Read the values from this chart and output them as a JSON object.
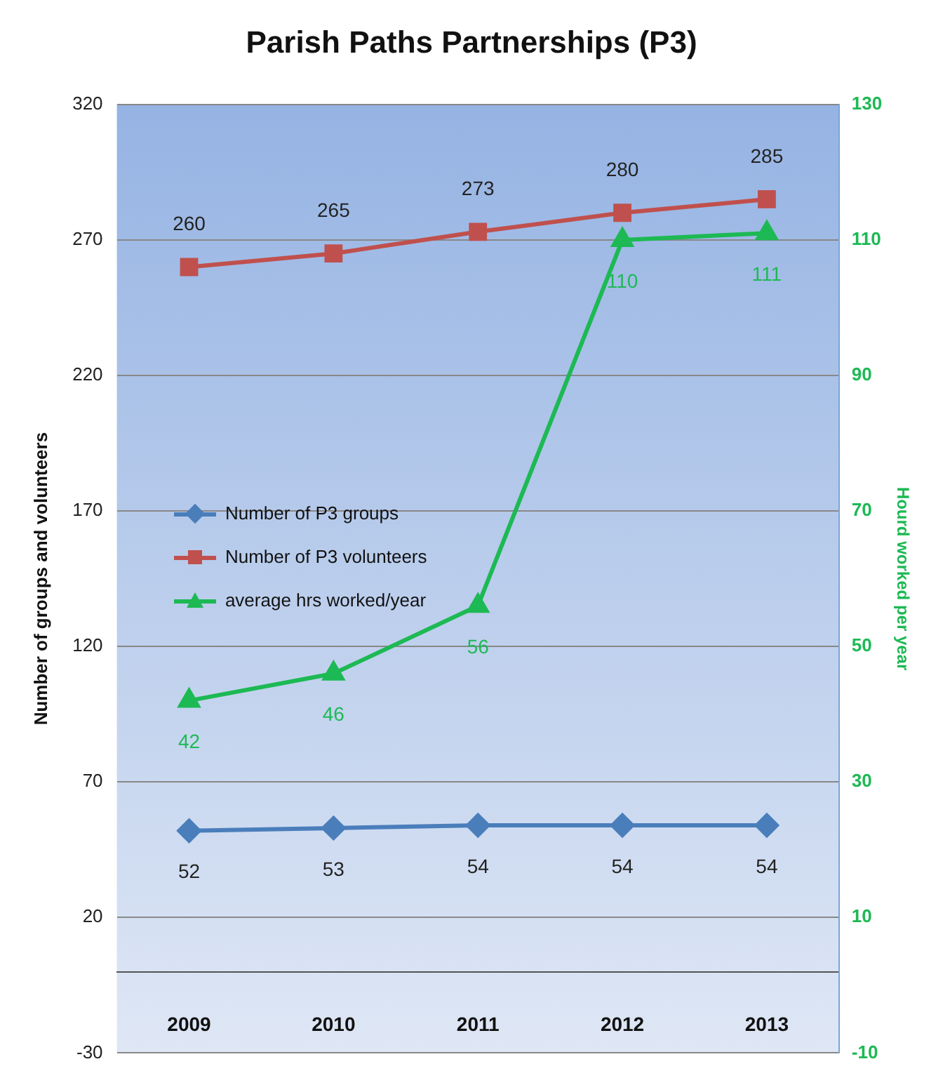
{
  "chart_data": {
    "type": "line",
    "title": "Parish Paths Partnerships (P3)",
    "ylabel": "Number of groups and volunteers",
    "y2label": "Hourd worked per year",
    "categories": [
      "2009",
      "2010",
      "2011",
      "2012",
      "2013"
    ],
    "series": [
      {
        "name": "Number of P3 groups",
        "color": "#4a7ebb",
        "marker": "diamond",
        "values": [
          52,
          53,
          54,
          54,
          54
        ]
      },
      {
        "name": "Number of P3 volunteers",
        "color": "#c0504d",
        "marker": "square",
        "values": [
          260,
          265,
          273,
          280,
          285
        ]
      },
      {
        "name": "average hrs worked/year",
        "color": "#1db954",
        "marker": "triangle",
        "axis": "y2",
        "values": [
          42,
          46,
          56,
          110,
          111
        ]
      }
    ],
    "ylim": [
      -30,
      320
    ],
    "yticks": [
      -30,
      20,
      70,
      120,
      170,
      220,
      270,
      320
    ],
    "y2lim": [
      -10,
      130
    ],
    "y2ticks": [
      -10,
      10,
      30,
      50,
      70,
      90,
      110,
      130
    ],
    "grid": "y",
    "legend": "left",
    "data_labels": true,
    "line_style": "solid"
  }
}
